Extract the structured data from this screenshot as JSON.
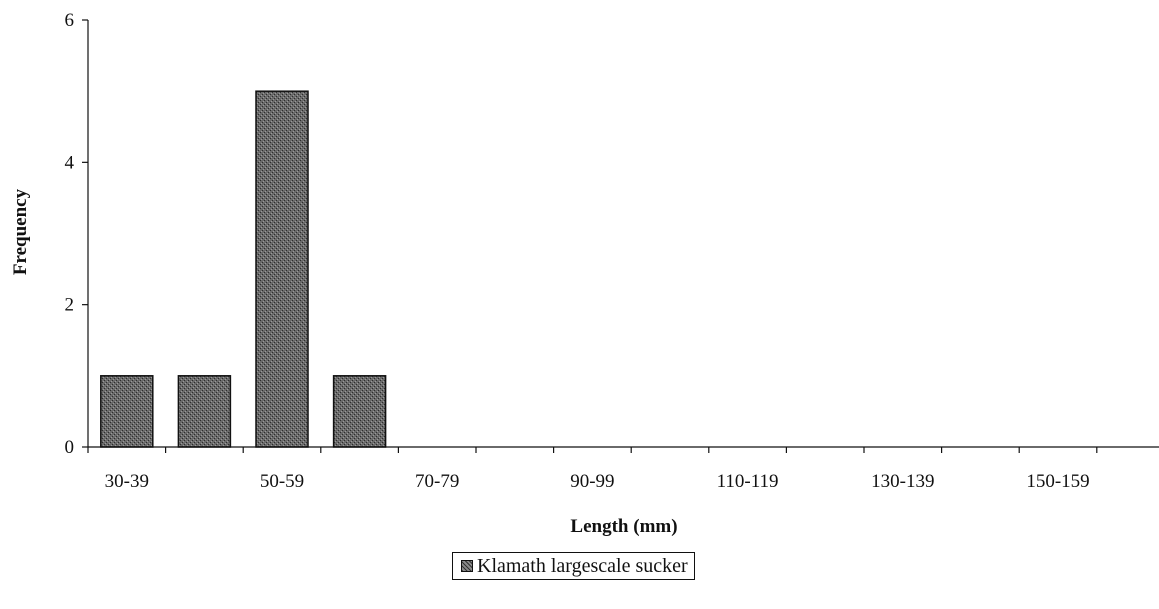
{
  "chart_data": {
    "type": "bar",
    "categories": [
      "30-39",
      "40-49",
      "50-59",
      "60-69",
      "70-79",
      "80-89",
      "90-99",
      "100-109",
      "110-119",
      "120-129",
      "130-139",
      "140-149",
      "150-159",
      "160-169"
    ],
    "category_labels_shown": [
      "30-39",
      "",
      "50-59",
      "",
      "70-79",
      "",
      "90-99",
      "",
      "110-119",
      "",
      "130-139",
      "",
      "150-159",
      ""
    ],
    "series": [
      {
        "name": "Klamath largescale sucker",
        "values": [
          1,
          1,
          5,
          1,
          0,
          0,
          0,
          0,
          0,
          0,
          0,
          0,
          0,
          0
        ]
      }
    ],
    "xlabel": "Length (mm)",
    "ylabel": "Frequency",
    "ylim": [
      0,
      6
    ],
    "yticks": [
      0,
      2,
      4,
      6
    ],
    "grid": false,
    "legend_position": "bottom-center",
    "bar_color": "#5a5a5a"
  }
}
